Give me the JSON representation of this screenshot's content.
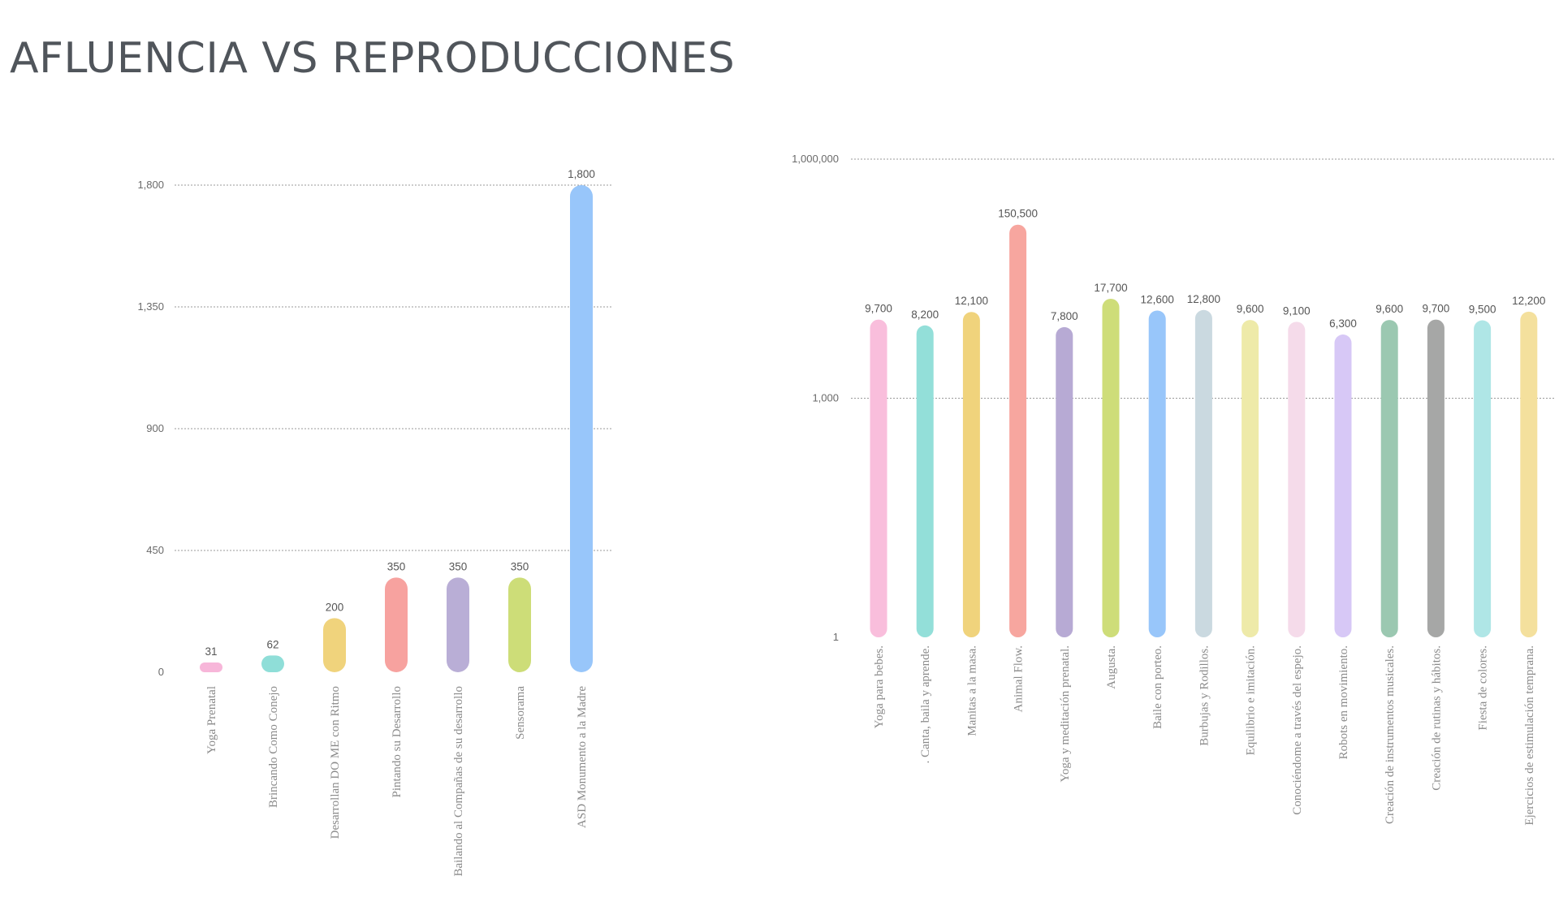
{
  "page": {
    "title": "AFLUENCIA VS REPRODUCCIONES"
  },
  "chart_data": [
    {
      "type": "bar",
      "title": "",
      "xlabel": "",
      "ylabel": "",
      "ylim": [
        0,
        1800
      ],
      "yticks": [
        0,
        450,
        900,
        1350,
        1800
      ],
      "ytick_labels": [
        "0",
        "450",
        "900",
        "1,350",
        "1,800"
      ],
      "grid": true,
      "categories": [
        "Yoga Prenatal",
        "Brincando Como Conejo",
        "Desarrollan DO ME  con Ritmo",
        "Pintando su Desarrollo",
        "Bailando al Compañas de su desarrollo",
        "Sensorama",
        "ASD Monumento a la Madre"
      ],
      "values": [
        31,
        62,
        200,
        350,
        350,
        350,
        1800
      ],
      "value_labels": [
        "31",
        "62",
        "200",
        "350",
        "350",
        "350",
        "1,800"
      ],
      "colors": [
        "#f7b6d9",
        "#8fded8",
        "#f0d37c",
        "#f7a29f",
        "#b9aed6",
        "#cddd78",
        "#98c6fa"
      ]
    },
    {
      "type": "bar",
      "title": "",
      "xlabel": "",
      "ylabel": "",
      "yscale": "log",
      "ylim": [
        1,
        1000000
      ],
      "yticks": [
        1,
        1000,
        1000000
      ],
      "ytick_labels": [
        "1",
        "1,000",
        "1,000,000"
      ],
      "grid": true,
      "categories": [
        "Yoga para bebes.",
        ". Canta, baila y aprende.",
        "Manitas a la masa.",
        "Animal Flow.",
        "Yoga y meditación prenatal.",
        "Augusta.",
        "Baile con porteo.",
        "Burbujas y Rodillos.",
        "Equilibrio e imitación.",
        "Conociéndome a través del espejo.",
        "Robots en movimiento.",
        "Creación de instrumentos musicales.",
        "Creación de rutinas y hábitos.",
        "Fiesta de colores.",
        "Ejercicios de estimulación temprana."
      ],
      "values": [
        9700,
        8200,
        12100,
        150500,
        7800,
        17700,
        12600,
        12800,
        9600,
        9100,
        6300,
        9600,
        9700,
        9500,
        12200
      ],
      "value_labels": [
        "9,700",
        "8,200",
        "12,100",
        "150,500",
        "7,800",
        "17,700",
        "12,600",
        "12,800",
        "9,600",
        "9,100",
        "6,300",
        "9,600",
        "9,700",
        "9,500",
        "12,200"
      ],
      "colors": [
        "#f9bedc",
        "#93dfd9",
        "#f0d37c",
        "#f7a69f",
        "#b7aad4",
        "#cedd79",
        "#98c6fa",
        "#cad9e0",
        "#eeeaa9",
        "#f5dbea",
        "#d7c8f6",
        "#9bc8b1",
        "#a6a7a6",
        "#afe6e6",
        "#f4e09d"
      ]
    }
  ]
}
